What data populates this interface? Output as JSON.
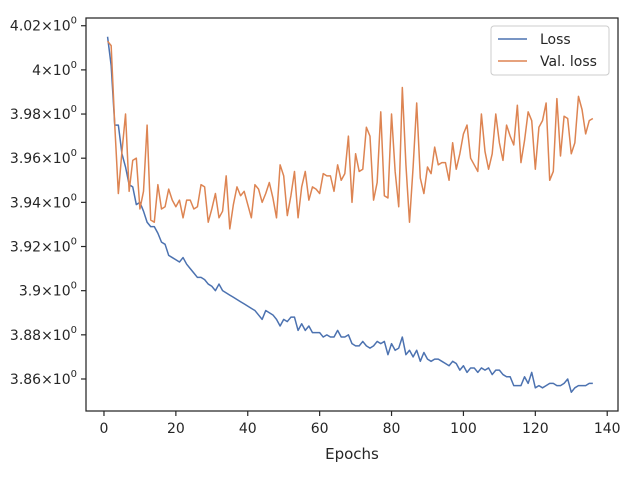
{
  "chart_data": {
    "type": "line",
    "title": "",
    "xlabel": "Epochs",
    "ylabel": "",
    "xlim": [
      -5,
      143
    ],
    "ylim": [
      3.8455,
      4.0235
    ],
    "grid": false,
    "legend_placement": "top-right",
    "x_ticks": [
      {
        "value": 0,
        "label": "0"
      },
      {
        "value": 20,
        "label": "20"
      },
      {
        "value": 40,
        "label": "40"
      },
      {
        "value": 60,
        "label": "60"
      },
      {
        "value": 80,
        "label": "80"
      },
      {
        "value": 100,
        "label": "100"
      },
      {
        "value": 120,
        "label": "120"
      },
      {
        "value": 140,
        "label": "140"
      }
    ],
    "y_ticks": [
      {
        "value": 3.86,
        "base": "3.86",
        "exp": "0"
      },
      {
        "value": 3.88,
        "base": "3.88",
        "exp": "0"
      },
      {
        "value": 3.9,
        "base": "3.9",
        "exp": "0"
      },
      {
        "value": 3.92,
        "base": "3.92",
        "exp": "0"
      },
      {
        "value": 3.94,
        "base": "3.94",
        "exp": "0"
      },
      {
        "value": 3.96,
        "base": "3.96",
        "exp": "0"
      },
      {
        "value": 3.98,
        "base": "3.98",
        "exp": "0"
      },
      {
        "value": 4.0,
        "base": "4",
        "exp": "0"
      },
      {
        "value": 4.02,
        "base": "4.02",
        "exp": "0"
      }
    ],
    "x_start": 1,
    "series": [
      {
        "name": "Loss",
        "color": "#4c72b0",
        "values": [
          4.015,
          4.002,
          3.975,
          3.975,
          3.962,
          3.956,
          3.948,
          3.947,
          3.939,
          3.94,
          3.936,
          3.931,
          3.929,
          3.929,
          3.926,
          3.922,
          3.921,
          3.916,
          3.915,
          3.914,
          3.913,
          3.915,
          3.912,
          3.91,
          3.908,
          3.906,
          3.906,
          3.905,
          3.903,
          3.902,
          3.9,
          3.903,
          3.9,
          3.899,
          3.898,
          3.897,
          3.896,
          3.895,
          3.894,
          3.893,
          3.892,
          3.891,
          3.889,
          3.887,
          3.891,
          3.89,
          3.889,
          3.887,
          3.884,
          3.887,
          3.886,
          3.888,
          3.888,
          3.882,
          3.885,
          3.882,
          3.884,
          3.881,
          3.881,
          3.881,
          3.879,
          3.88,
          3.879,
          3.879,
          3.882,
          3.879,
          3.879,
          3.88,
          3.876,
          3.875,
          3.875,
          3.877,
          3.875,
          3.874,
          3.875,
          3.877,
          3.876,
          3.877,
          3.871,
          3.876,
          3.873,
          3.874,
          3.879,
          3.871,
          3.873,
          3.87,
          3.873,
          3.868,
          3.872,
          3.869,
          3.868,
          3.869,
          3.869,
          3.868,
          3.867,
          3.866,
          3.868,
          3.867,
          3.864,
          3.866,
          3.863,
          3.865,
          3.865,
          3.863,
          3.865,
          3.864,
          3.865,
          3.862,
          3.864,
          3.864,
          3.862,
          3.861,
          3.861,
          3.857,
          3.857,
          3.857,
          3.861,
          3.858,
          3.863,
          3.856,
          3.857,
          3.856,
          3.857,
          3.858,
          3.858,
          3.857,
          3.857,
          3.858,
          3.86,
          3.854,
          3.856,
          3.857,
          3.857,
          3.857,
          3.858,
          3.858
        ]
      },
      {
        "name": "Val. loss",
        "color": "#dd8452",
        "values": [
          4.013,
          4.011,
          3.975,
          3.944,
          3.963,
          3.98,
          3.945,
          3.959,
          3.96,
          3.937,
          3.945,
          3.975,
          3.932,
          3.931,
          3.948,
          3.937,
          3.938,
          3.946,
          3.941,
          3.938,
          3.941,
          3.933,
          3.941,
          3.941,
          3.937,
          3.938,
          3.948,
          3.947,
          3.931,
          3.937,
          3.944,
          3.933,
          3.936,
          3.952,
          3.928,
          3.939,
          3.947,
          3.943,
          3.945,
          3.939,
          3.933,
          3.948,
          3.946,
          3.94,
          3.944,
          3.949,
          3.942,
          3.933,
          3.957,
          3.952,
          3.934,
          3.943,
          3.954,
          3.933,
          3.947,
          3.954,
          3.941,
          3.947,
          3.946,
          3.944,
          3.953,
          3.952,
          3.952,
          3.945,
          3.957,
          3.95,
          3.953,
          3.97,
          3.94,
          3.962,
          3.954,
          3.955,
          3.974,
          3.97,
          3.941,
          3.949,
          3.981,
          3.943,
          3.942,
          3.98,
          3.954,
          3.938,
          3.992,
          3.957,
          3.931,
          3.956,
          3.985,
          3.951,
          3.944,
          3.956,
          3.953,
          3.965,
          3.957,
          3.958,
          3.958,
          3.95,
          3.967,
          3.955,
          3.962,
          3.971,
          3.975,
          3.96,
          3.957,
          3.954,
          3.98,
          3.963,
          3.955,
          3.962,
          3.98,
          3.967,
          3.959,
          3.975,
          3.97,
          3.966,
          3.984,
          3.958,
          3.968,
          3.981,
          3.977,
          3.955,
          3.974,
          3.977,
          3.985,
          3.95,
          3.954,
          3.987,
          3.961,
          3.979,
          3.978,
          3.962,
          3.967,
          3.988,
          3.982,
          3.971,
          3.977,
          3.978
        ]
      }
    ]
  }
}
